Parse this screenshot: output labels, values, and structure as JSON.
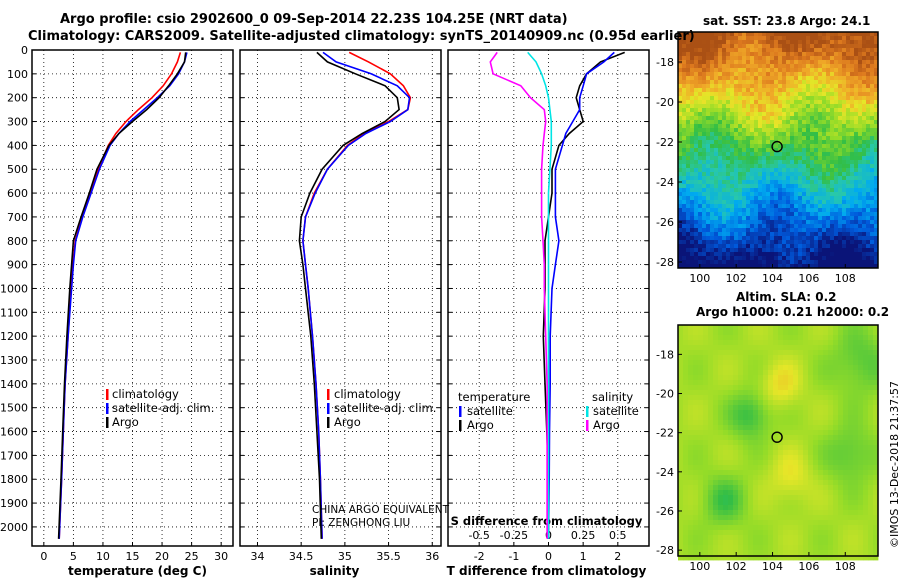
{
  "header": {
    "line1": "Argo profile: csio 2902600_0 09-Sep-2014 22.23S 104.25E (NRT data)",
    "line2": "Climatology: CARS2009. Satellite-adjusted climatology: synTS_20140909.nc (0.95d earlier)"
  },
  "sst_map": {
    "title": "sat. SST: 23.8 Argo: 24.1",
    "x_ticks": [
      "100",
      "102",
      "104",
      "106",
      "108"
    ],
    "y_ticks": [
      "-18",
      "-20",
      "-22",
      "-24",
      "-26",
      "-28"
    ]
  },
  "sla_map": {
    "title1": "Altim. SLA: 0.2",
    "title2": "Argo h1000: 0.21 h2000: 0.2",
    "x_ticks": [
      "100",
      "102",
      "104",
      "106",
      "108"
    ],
    "y_ticks": [
      "-18",
      "-20",
      "-22",
      "-24",
      "-26",
      "-28"
    ]
  },
  "footer": "©IMOS 13-Dec-2018 21:37:57",
  "colors": {
    "climatology": "#ff0000",
    "satellite": "#0000ff",
    "argo": "#000000",
    "temp_diff": "#000000",
    "sat_temp_diff": "#0000ff",
    "sal_sat_diff": "#00e5e5",
    "sal_argo_diff": "#ff00ff"
  },
  "chart_data": [
    {
      "type": "line",
      "xlabel": "temperature (deg C)",
      "ylabel": "",
      "xlim": [
        -2,
        32
      ],
      "ylim": [
        2080,
        0
      ],
      "x_ticks": [
        0,
        5,
        10,
        15,
        20,
        25,
        30
      ],
      "y_ticks": [
        0,
        100,
        200,
        300,
        400,
        500,
        600,
        700,
        800,
        900,
        1000,
        1100,
        1200,
        1300,
        1400,
        1500,
        1600,
        1700,
        1800,
        1900,
        2000
      ],
      "legend": {
        "position": "bottom-center",
        "items": [
          {
            "label": "climatology",
            "color": "#ff0000"
          },
          {
            "label": "satellite-adj. clim.",
            "color": "#0000ff"
          },
          {
            "label": "Argo",
            "color": "#000000"
          }
        ]
      },
      "series": [
        {
          "name": "climatology",
          "color": "#ff0000",
          "depth": [
            10,
            50,
            100,
            150,
            200,
            250,
            300,
            350,
            400,
            500,
            600,
            700,
            800,
            900,
            1000,
            1200,
            1400,
            1600,
            1800,
            2050
          ],
          "values": [
            23.1,
            22.6,
            21.6,
            20.2,
            18.3,
            16.0,
            13.9,
            12.2,
            10.9,
            9.2,
            7.9,
            6.5,
            5.3,
            4.9,
            4.6,
            4.1,
            3.6,
            3.3,
            3.0,
            2.6
          ]
        },
        {
          "name": "satellite-adj. clim.",
          "color": "#0000ff",
          "depth": [
            10,
            50,
            100,
            150,
            200,
            250,
            300,
            350,
            400,
            500,
            600,
            700,
            800,
            900,
            1000,
            1200,
            1400,
            1600,
            1800,
            2050
          ],
          "values": [
            24.2,
            23.8,
            22.8,
            21.3,
            19.2,
            16.9,
            14.6,
            12.7,
            11.2,
            9.4,
            8.0,
            6.6,
            5.4,
            5.0,
            4.7,
            4.1,
            3.6,
            3.3,
            3.0,
            2.6
          ]
        },
        {
          "name": "Argo",
          "color": "#000000",
          "depth": [
            10,
            50,
            100,
            150,
            200,
            250,
            300,
            350,
            400,
            500,
            600,
            700,
            800,
            900,
            1000,
            1200,
            1400,
            1600,
            1800,
            2050
          ],
          "values": [
            24.0,
            23.8,
            22.6,
            21.1,
            19.5,
            17.4,
            15.0,
            12.7,
            11.0,
            9.0,
            7.7,
            6.3,
            5.0,
            4.7,
            4.4,
            3.9,
            3.5,
            3.2,
            2.9,
            2.5
          ]
        }
      ]
    },
    {
      "type": "line",
      "xlabel": "salinity",
      "ylabel": "",
      "xlim": [
        33.8,
        36.1
      ],
      "ylim": [
        2080,
        0
      ],
      "x_ticks": [
        34,
        34.5,
        35,
        35.5,
        36
      ],
      "x_tick_labels": [
        "34",
        "34.5",
        "35",
        "35.5",
        "36"
      ],
      "legend": {
        "position": "bottom-right",
        "items": [
          {
            "label": "climatology",
            "color": "#ff0000"
          },
          {
            "label": "satellite-adj. clim.",
            "color": "#0000ff"
          },
          {
            "label": "Argo",
            "color": "#000000"
          }
        ]
      },
      "annotations": [
        "CHINA ARGO EQUIVALENT",
        "PI: ZENGHONG LIU"
      ],
      "series": [
        {
          "name": "climatology",
          "color": "#ff0000",
          "depth": [
            10,
            50,
            100,
            150,
            200,
            250,
            300,
            350,
            400,
            500,
            600,
            700,
            800,
            900,
            1000,
            1200,
            1400,
            1600,
            1800,
            2050
          ],
          "values": [
            35.05,
            35.27,
            35.52,
            35.67,
            35.75,
            35.72,
            35.5,
            35.22,
            35.03,
            34.8,
            34.65,
            34.55,
            34.52,
            34.55,
            34.58,
            34.63,
            34.67,
            34.7,
            34.72,
            34.74
          ]
        },
        {
          "name": "satellite-adj. clim.",
          "color": "#0000ff",
          "depth": [
            10,
            50,
            100,
            150,
            200,
            250,
            300,
            350,
            400,
            500,
            600,
            700,
            800,
            900,
            1000,
            1200,
            1400,
            1600,
            1800,
            2050
          ],
          "values": [
            34.75,
            34.9,
            35.3,
            35.6,
            35.74,
            35.72,
            35.52,
            35.24,
            35.04,
            34.8,
            34.66,
            34.55,
            34.52,
            34.55,
            34.58,
            34.63,
            34.67,
            34.7,
            34.72,
            34.74
          ]
        },
        {
          "name": "Argo",
          "color": "#000000",
          "depth": [
            10,
            50,
            100,
            150,
            200,
            250,
            300,
            350,
            400,
            500,
            600,
            700,
            800,
            900,
            1000,
            1200,
            1400,
            1600,
            1800,
            2050
          ],
          "values": [
            34.68,
            34.8,
            35.12,
            35.46,
            35.6,
            35.62,
            35.46,
            35.2,
            34.98,
            34.74,
            34.6,
            34.5,
            34.48,
            34.52,
            34.55,
            34.61,
            34.65,
            34.68,
            34.71,
            34.73
          ]
        }
      ]
    },
    {
      "type": "line",
      "xlabel": "T difference from climatology",
      "top_xlabel": "S difference from climatology",
      "xlim": [
        -2.9,
        2.9
      ],
      "ylim": [
        2080,
        0
      ],
      "x_ticks": [
        -2,
        -1,
        0,
        1,
        2
      ],
      "s_ticks": [
        -0.5,
        -0.25,
        0,
        0.25,
        0.5
      ],
      "s_tick_labels": [
        "-0.5",
        "-0.25",
        "0",
        "0.25",
        "0.5"
      ],
      "legend_temperature": {
        "title": "temperature",
        "position": "bottom-left",
        "items": [
          {
            "label": "satellite",
            "color": "#0000ff"
          },
          {
            "label": "Argo",
            "color": "#000000"
          }
        ]
      },
      "legend_salinity": {
        "title": "salinity",
        "position": "bottom-right",
        "items": [
          {
            "label": "satellite",
            "color": "#00e5e5"
          },
          {
            "label": "Argo",
            "color": "#ff00ff"
          }
        ]
      },
      "series": [
        {
          "name": "temperature Argo",
          "unit": "deg C",
          "color": "#000000",
          "depth": [
            10,
            50,
            100,
            150,
            200,
            250,
            300,
            350,
            400,
            500,
            600,
            700,
            800,
            900,
            1000,
            1200,
            1400,
            1600,
            1800,
            2050
          ],
          "values": [
            2.2,
            1.5,
            1.1,
            0.9,
            0.8,
            0.9,
            1.0,
            0.6,
            0.3,
            0.1,
            0.1,
            0.0,
            -0.1,
            -0.1,
            -0.1,
            -0.15,
            -0.1,
            -0.05,
            0.0,
            0.0
          ]
        },
        {
          "name": "temperature satellite",
          "unit": "deg C",
          "color": "#0000ff",
          "depth": [
            10,
            50,
            100,
            150,
            200,
            250,
            300,
            350,
            400,
            500,
            600,
            700,
            800,
            900,
            1000,
            1200,
            1400,
            1600,
            1800,
            2050
          ],
          "values": [
            1.9,
            1.6,
            1.1,
            1.0,
            0.9,
            0.9,
            0.7,
            0.5,
            0.4,
            0.2,
            0.2,
            0.2,
            0.3,
            0.2,
            0.1,
            0.05,
            0.05,
            0.03,
            0.02,
            0.0
          ]
        },
        {
          "name": "salinity satellite",
          "unit": "psu",
          "color": "#00e5e5",
          "depth": [
            10,
            50,
            100,
            150,
            200,
            250,
            300,
            350,
            400,
            500,
            600,
            700,
            800,
            900,
            1000,
            1200,
            1400,
            1600,
            1800,
            2050
          ],
          "values": [
            -0.15,
            -0.09,
            -0.05,
            -0.02,
            0.0,
            0.01,
            0.02,
            0.02,
            0.02,
            0.01,
            0.0,
            0.0,
            0.0,
            0.0,
            0.0,
            0.0,
            0.0,
            0.0,
            0.0,
            0.0
          ]
        },
        {
          "name": "salinity Argo",
          "unit": "psu",
          "color": "#ff00ff",
          "depth": [
            10,
            50,
            100,
            150,
            200,
            250,
            300,
            350,
            400,
            500,
            600,
            700,
            800,
            900,
            1000,
            1200,
            1400,
            1600,
            1800,
            2050
          ],
          "values": [
            -0.37,
            -0.42,
            -0.4,
            -0.2,
            -0.13,
            -0.03,
            -0.02,
            -0.03,
            -0.04,
            -0.05,
            -0.05,
            -0.05,
            -0.04,
            -0.03,
            -0.03,
            -0.02,
            -0.01,
            -0.01,
            -0.01,
            -0.01
          ]
        }
      ]
    },
    {
      "type": "heatmap",
      "title": "sat. SST: 23.8 Argo: 24.1",
      "xlim": [
        98.8,
        109.8
      ],
      "ylim": [
        -28.3,
        -16.5
      ],
      "x_ticks": [
        100,
        102,
        104,
        106,
        108
      ],
      "y_ticks": [
        -18,
        -20,
        -22,
        -24,
        -26,
        -28
      ],
      "argo_position": {
        "lon": 104.25,
        "lat": -22.23
      },
      "grid": "warm in north (orange/brown) cooling to blue in south"
    },
    {
      "type": "heatmap",
      "title": "Altim. SLA: 0.2 / Argo h1000: 0.21 h2000: 0.2",
      "xlim": [
        98.8,
        109.8
      ],
      "ylim": [
        -28.3,
        -16.5
      ],
      "x_ticks": [
        100,
        102,
        104,
        106,
        108
      ],
      "y_ticks": [
        -18,
        -20,
        -22,
        -24,
        -26,
        -28
      ],
      "argo_position": {
        "lon": 104.25,
        "lat": -22.23
      },
      "grid": "mostly yellow-green with green eddies"
    }
  ]
}
